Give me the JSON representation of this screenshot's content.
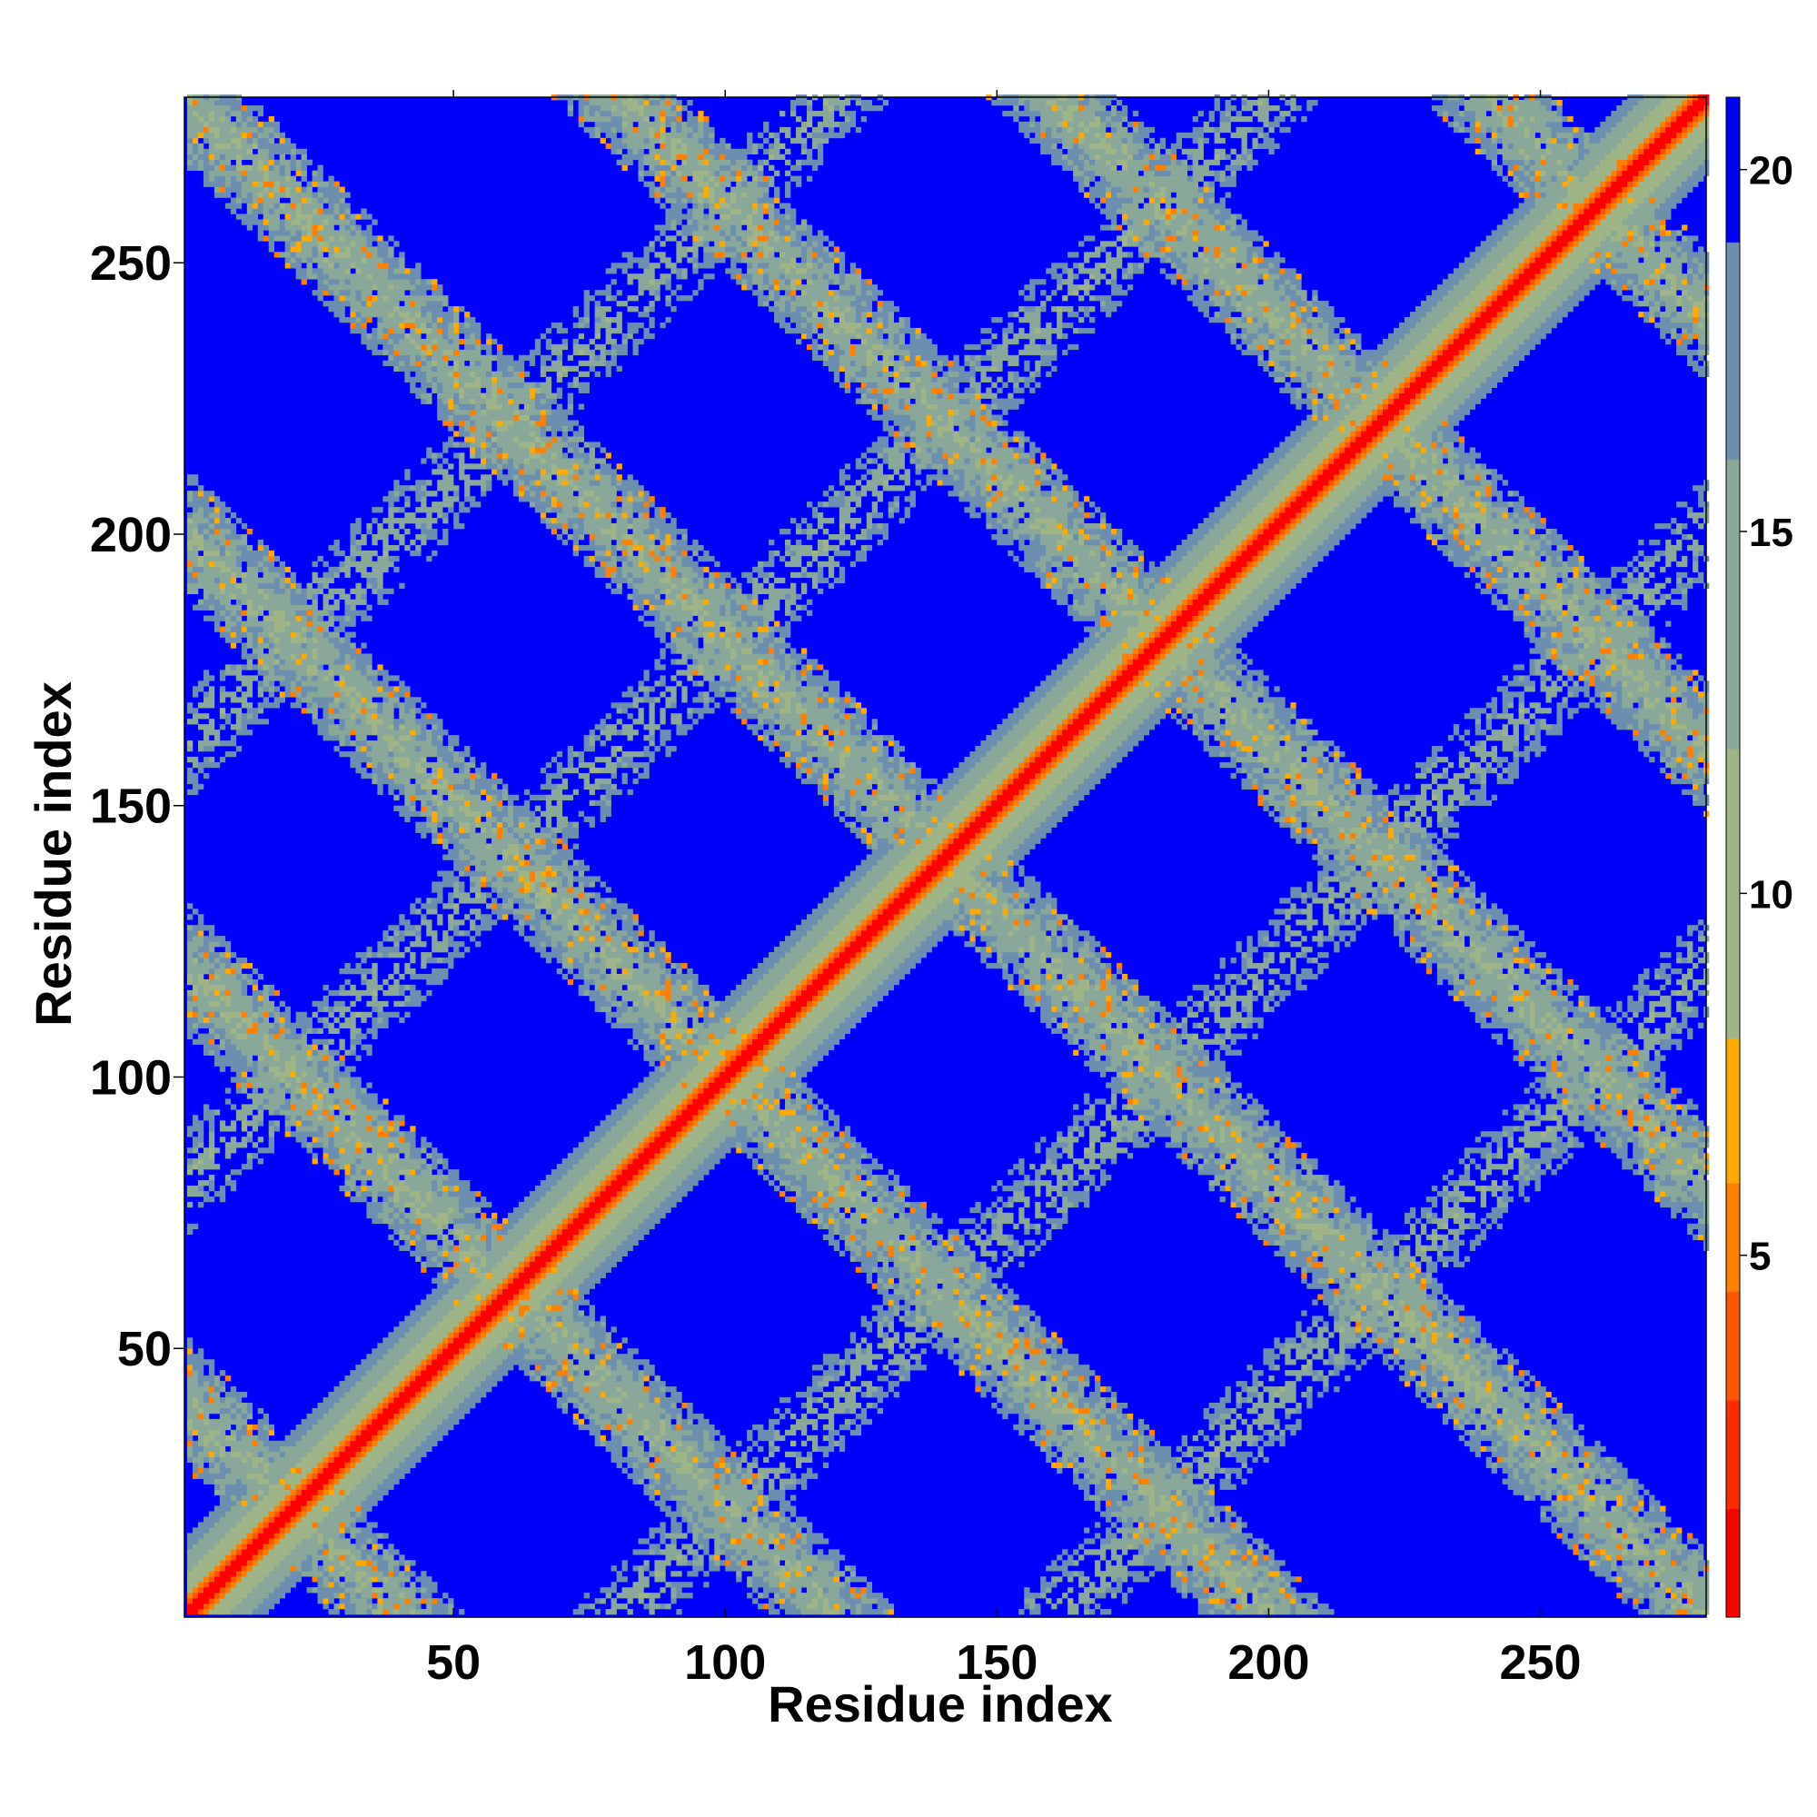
{
  "chart_data": {
    "type": "heatmap",
    "title": "",
    "xlabel": "Residue index",
    "ylabel": "Residue index",
    "n_residues": 280,
    "xlim": [
      1,
      280
    ],
    "ylim": [
      1,
      280
    ],
    "x_ticks": [
      50,
      100,
      150,
      200,
      250
    ],
    "y_ticks": [
      50,
      100,
      150,
      200,
      250
    ],
    "colorbar": {
      "ticks": [
        5,
        10,
        15,
        20
      ],
      "range": [
        0,
        21
      ],
      "colors": [
        "#ff0000",
        "#ff2a00",
        "#ff5500",
        "#ff8000",
        "#ffaa00",
        "#9fb587",
        "#8aa89a",
        "#6c8fb0",
        "#0000ff"
      ],
      "bounds": [
        1.5,
        3,
        4.5,
        6,
        8,
        12,
        16,
        19,
        21
      ]
    },
    "description_elements": {
      "diagonal": {
        "from": 1,
        "to": 280
      },
      "helix_repeat_period": 40
    }
  }
}
